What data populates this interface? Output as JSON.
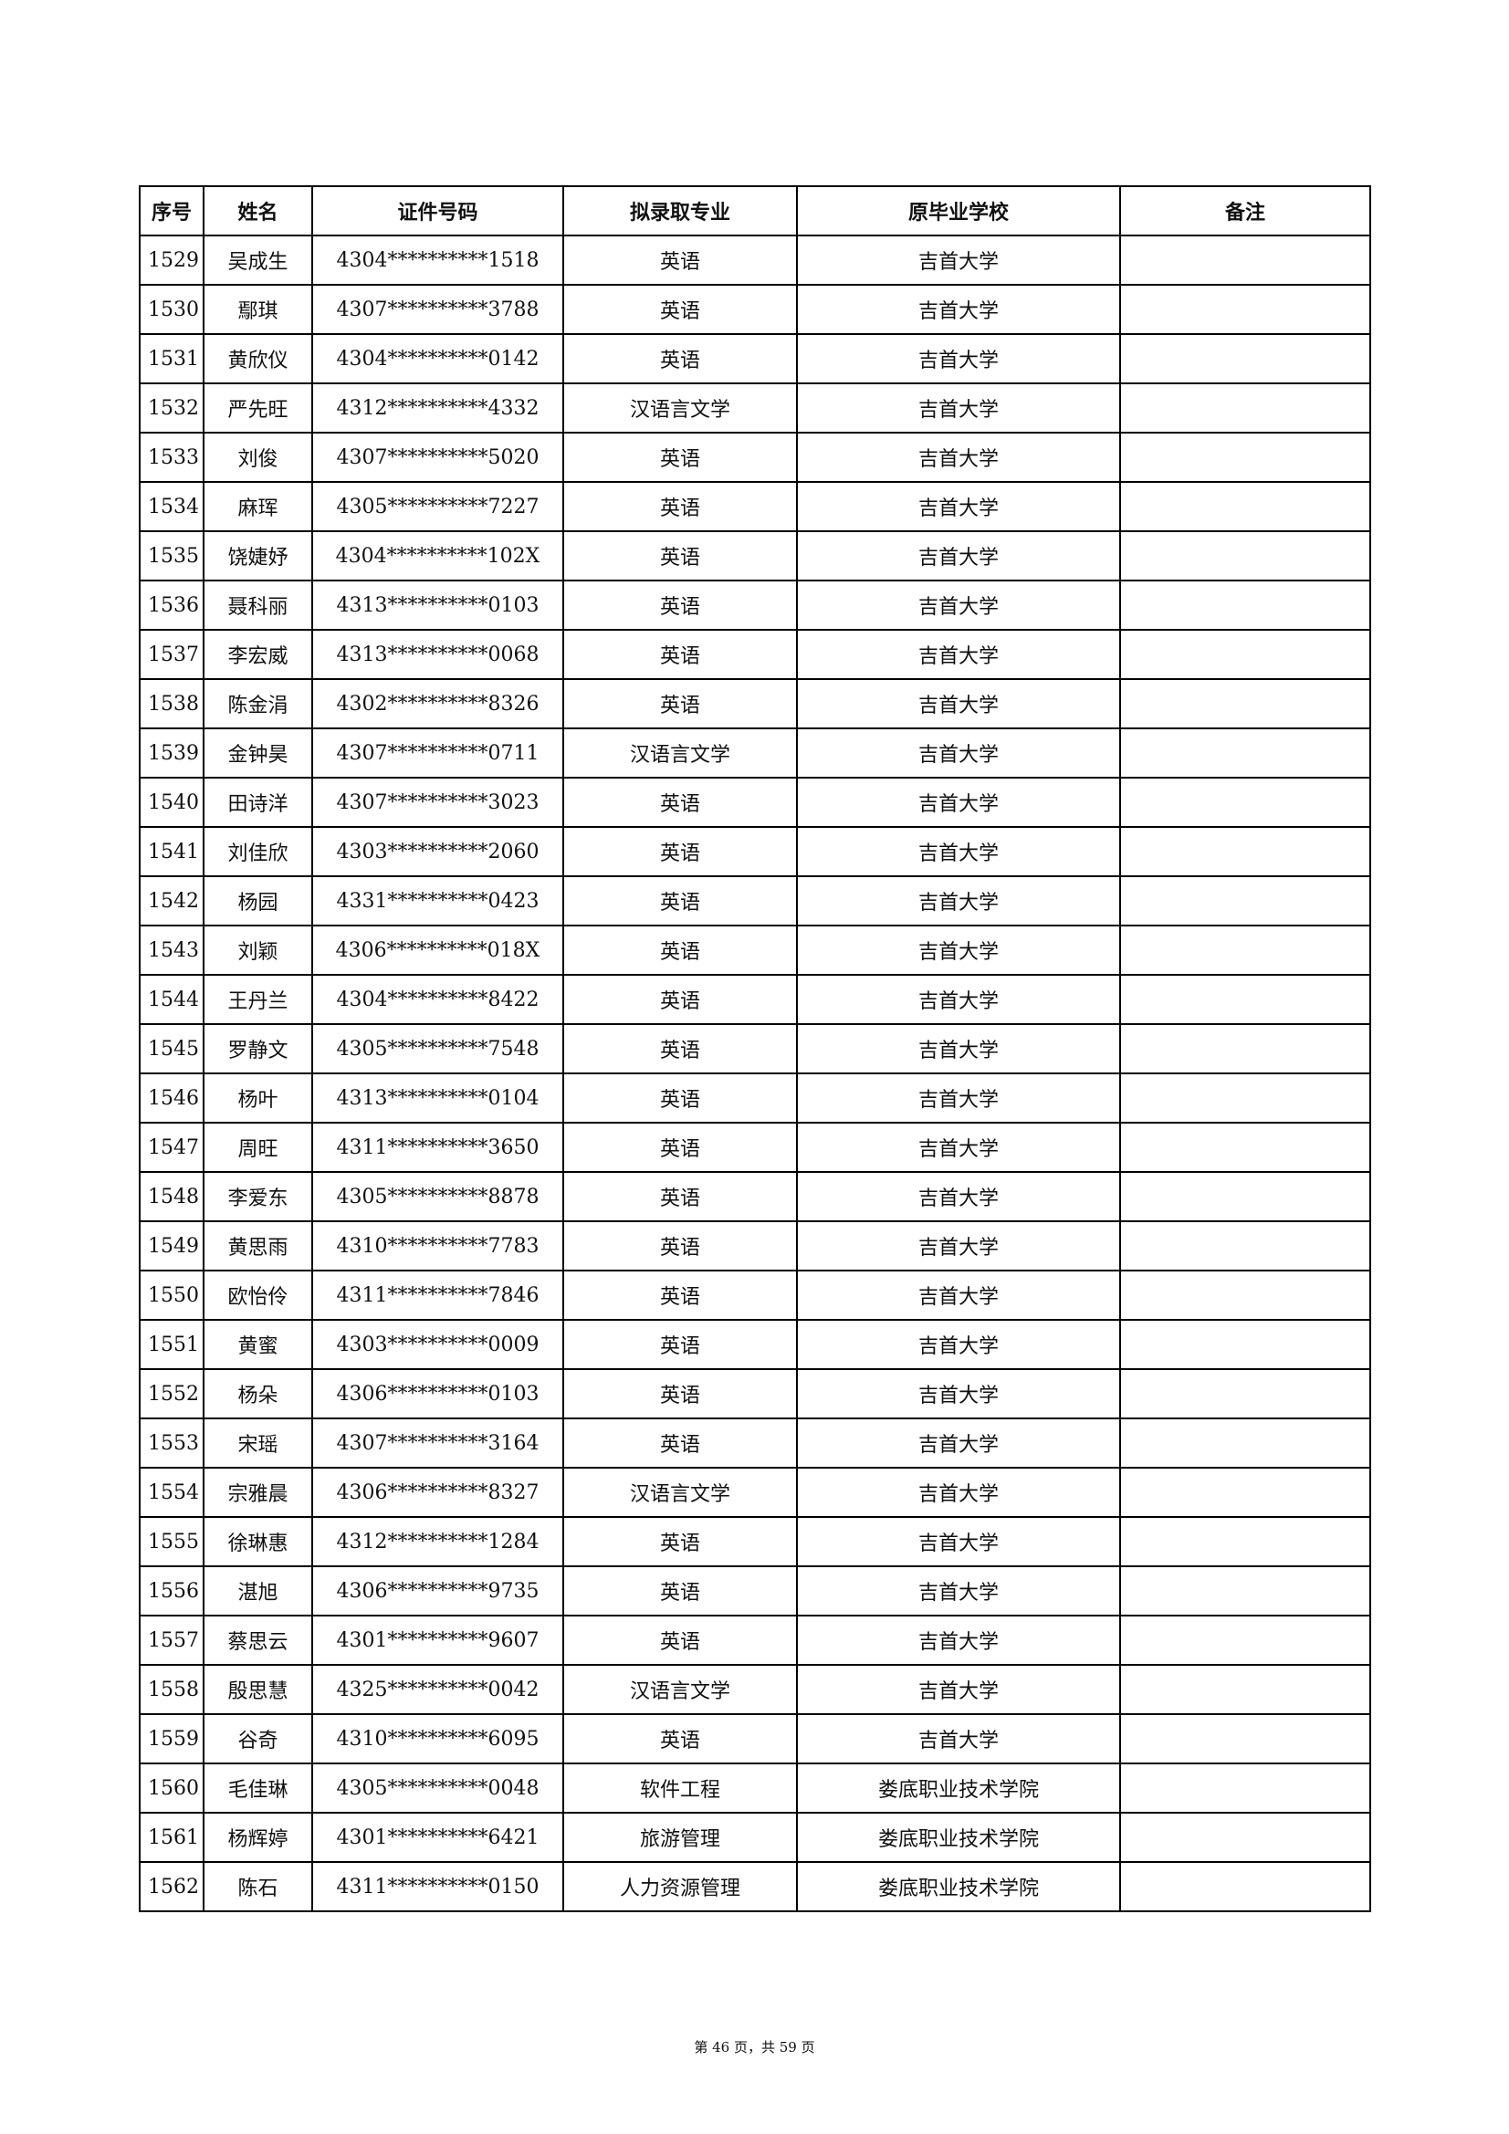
{
  "table": {
    "headers": [
      "序号",
      "姓名",
      "证件号码",
      "拟录取专业",
      "原毕业学校",
      "备注"
    ],
    "rows": [
      [
        "1529",
        "吴成生",
        "4304**********1518",
        "英语",
        "吉首大学",
        ""
      ],
      [
        "1530",
        "鄢琪",
        "4307**********3788",
        "英语",
        "吉首大学",
        ""
      ],
      [
        "1531",
        "黄欣仪",
        "4304**********0142",
        "英语",
        "吉首大学",
        ""
      ],
      [
        "1532",
        "严先旺",
        "4312**********4332",
        "汉语言文学",
        "吉首大学",
        ""
      ],
      [
        "1533",
        "刘俊",
        "4307**********5020",
        "英语",
        "吉首大学",
        ""
      ],
      [
        "1534",
        "麻珲",
        "4305**********7227",
        "英语",
        "吉首大学",
        ""
      ],
      [
        "1535",
        "饶婕妤",
        "4304**********102X",
        "英语",
        "吉首大学",
        ""
      ],
      [
        "1536",
        "聂科丽",
        "4313**********0103",
        "英语",
        "吉首大学",
        ""
      ],
      [
        "1537",
        "李宏威",
        "4313**********0068",
        "英语",
        "吉首大学",
        ""
      ],
      [
        "1538",
        "陈金涓",
        "4302**********8326",
        "英语",
        "吉首大学",
        ""
      ],
      [
        "1539",
        "金钟昊",
        "4307**********0711",
        "汉语言文学",
        "吉首大学",
        ""
      ],
      [
        "1540",
        "田诗洋",
        "4307**********3023",
        "英语",
        "吉首大学",
        ""
      ],
      [
        "1541",
        "刘佳欣",
        "4303**********2060",
        "英语",
        "吉首大学",
        ""
      ],
      [
        "1542",
        "杨园",
        "4331**********0423",
        "英语",
        "吉首大学",
        ""
      ],
      [
        "1543",
        "刘颖",
        "4306**********018X",
        "英语",
        "吉首大学",
        ""
      ],
      [
        "1544",
        "王丹兰",
        "4304**********8422",
        "英语",
        "吉首大学",
        ""
      ],
      [
        "1545",
        "罗静文",
        "4305**********7548",
        "英语",
        "吉首大学",
        ""
      ],
      [
        "1546",
        "杨叶",
        "4313**********0104",
        "英语",
        "吉首大学",
        ""
      ],
      [
        "1547",
        "周旺",
        "4311**********3650",
        "英语",
        "吉首大学",
        ""
      ],
      [
        "1548",
        "李爱东",
        "4305**********8878",
        "英语",
        "吉首大学",
        ""
      ],
      [
        "1549",
        "黄思雨",
        "4310**********7783",
        "英语",
        "吉首大学",
        ""
      ],
      [
        "1550",
        "欧怡伶",
        "4311**********7846",
        "英语",
        "吉首大学",
        ""
      ],
      [
        "1551",
        "黄蜜",
        "4303**********0009",
        "英语",
        "吉首大学",
        ""
      ],
      [
        "1552",
        "杨朵",
        "4306**********0103",
        "英语",
        "吉首大学",
        ""
      ],
      [
        "1553",
        "宋瑶",
        "4307**********3164",
        "英语",
        "吉首大学",
        ""
      ],
      [
        "1554",
        "宗雅晨",
        "4306**********8327",
        "汉语言文学",
        "吉首大学",
        ""
      ],
      [
        "1555",
        "徐琳惠",
        "4312**********1284",
        "英语",
        "吉首大学",
        ""
      ],
      [
        "1556",
        "湛旭",
        "4306**********9735",
        "英语",
        "吉首大学",
        ""
      ],
      [
        "1557",
        "蔡思云",
        "4301**********9607",
        "英语",
        "吉首大学",
        ""
      ],
      [
        "1558",
        "殷思慧",
        "4325**********0042",
        "汉语言文学",
        "吉首大学",
        ""
      ],
      [
        "1559",
        "谷奇",
        "4310**********6095",
        "英语",
        "吉首大学",
        ""
      ],
      [
        "1560",
        "毛佳琳",
        "4305**********0048",
        "软件工程",
        "娄底职业技术学院",
        ""
      ],
      [
        "1561",
        "杨辉婷",
        "4301**********6421",
        "旅游管理",
        "娄底职业技术学院",
        ""
      ],
      [
        "1562",
        "陈石",
        "4311**********0150",
        "人力资源管理",
        "娄底职业技术学院",
        ""
      ]
    ]
  },
  "footer": {
    "text": "第 46 页，共 59 页"
  }
}
